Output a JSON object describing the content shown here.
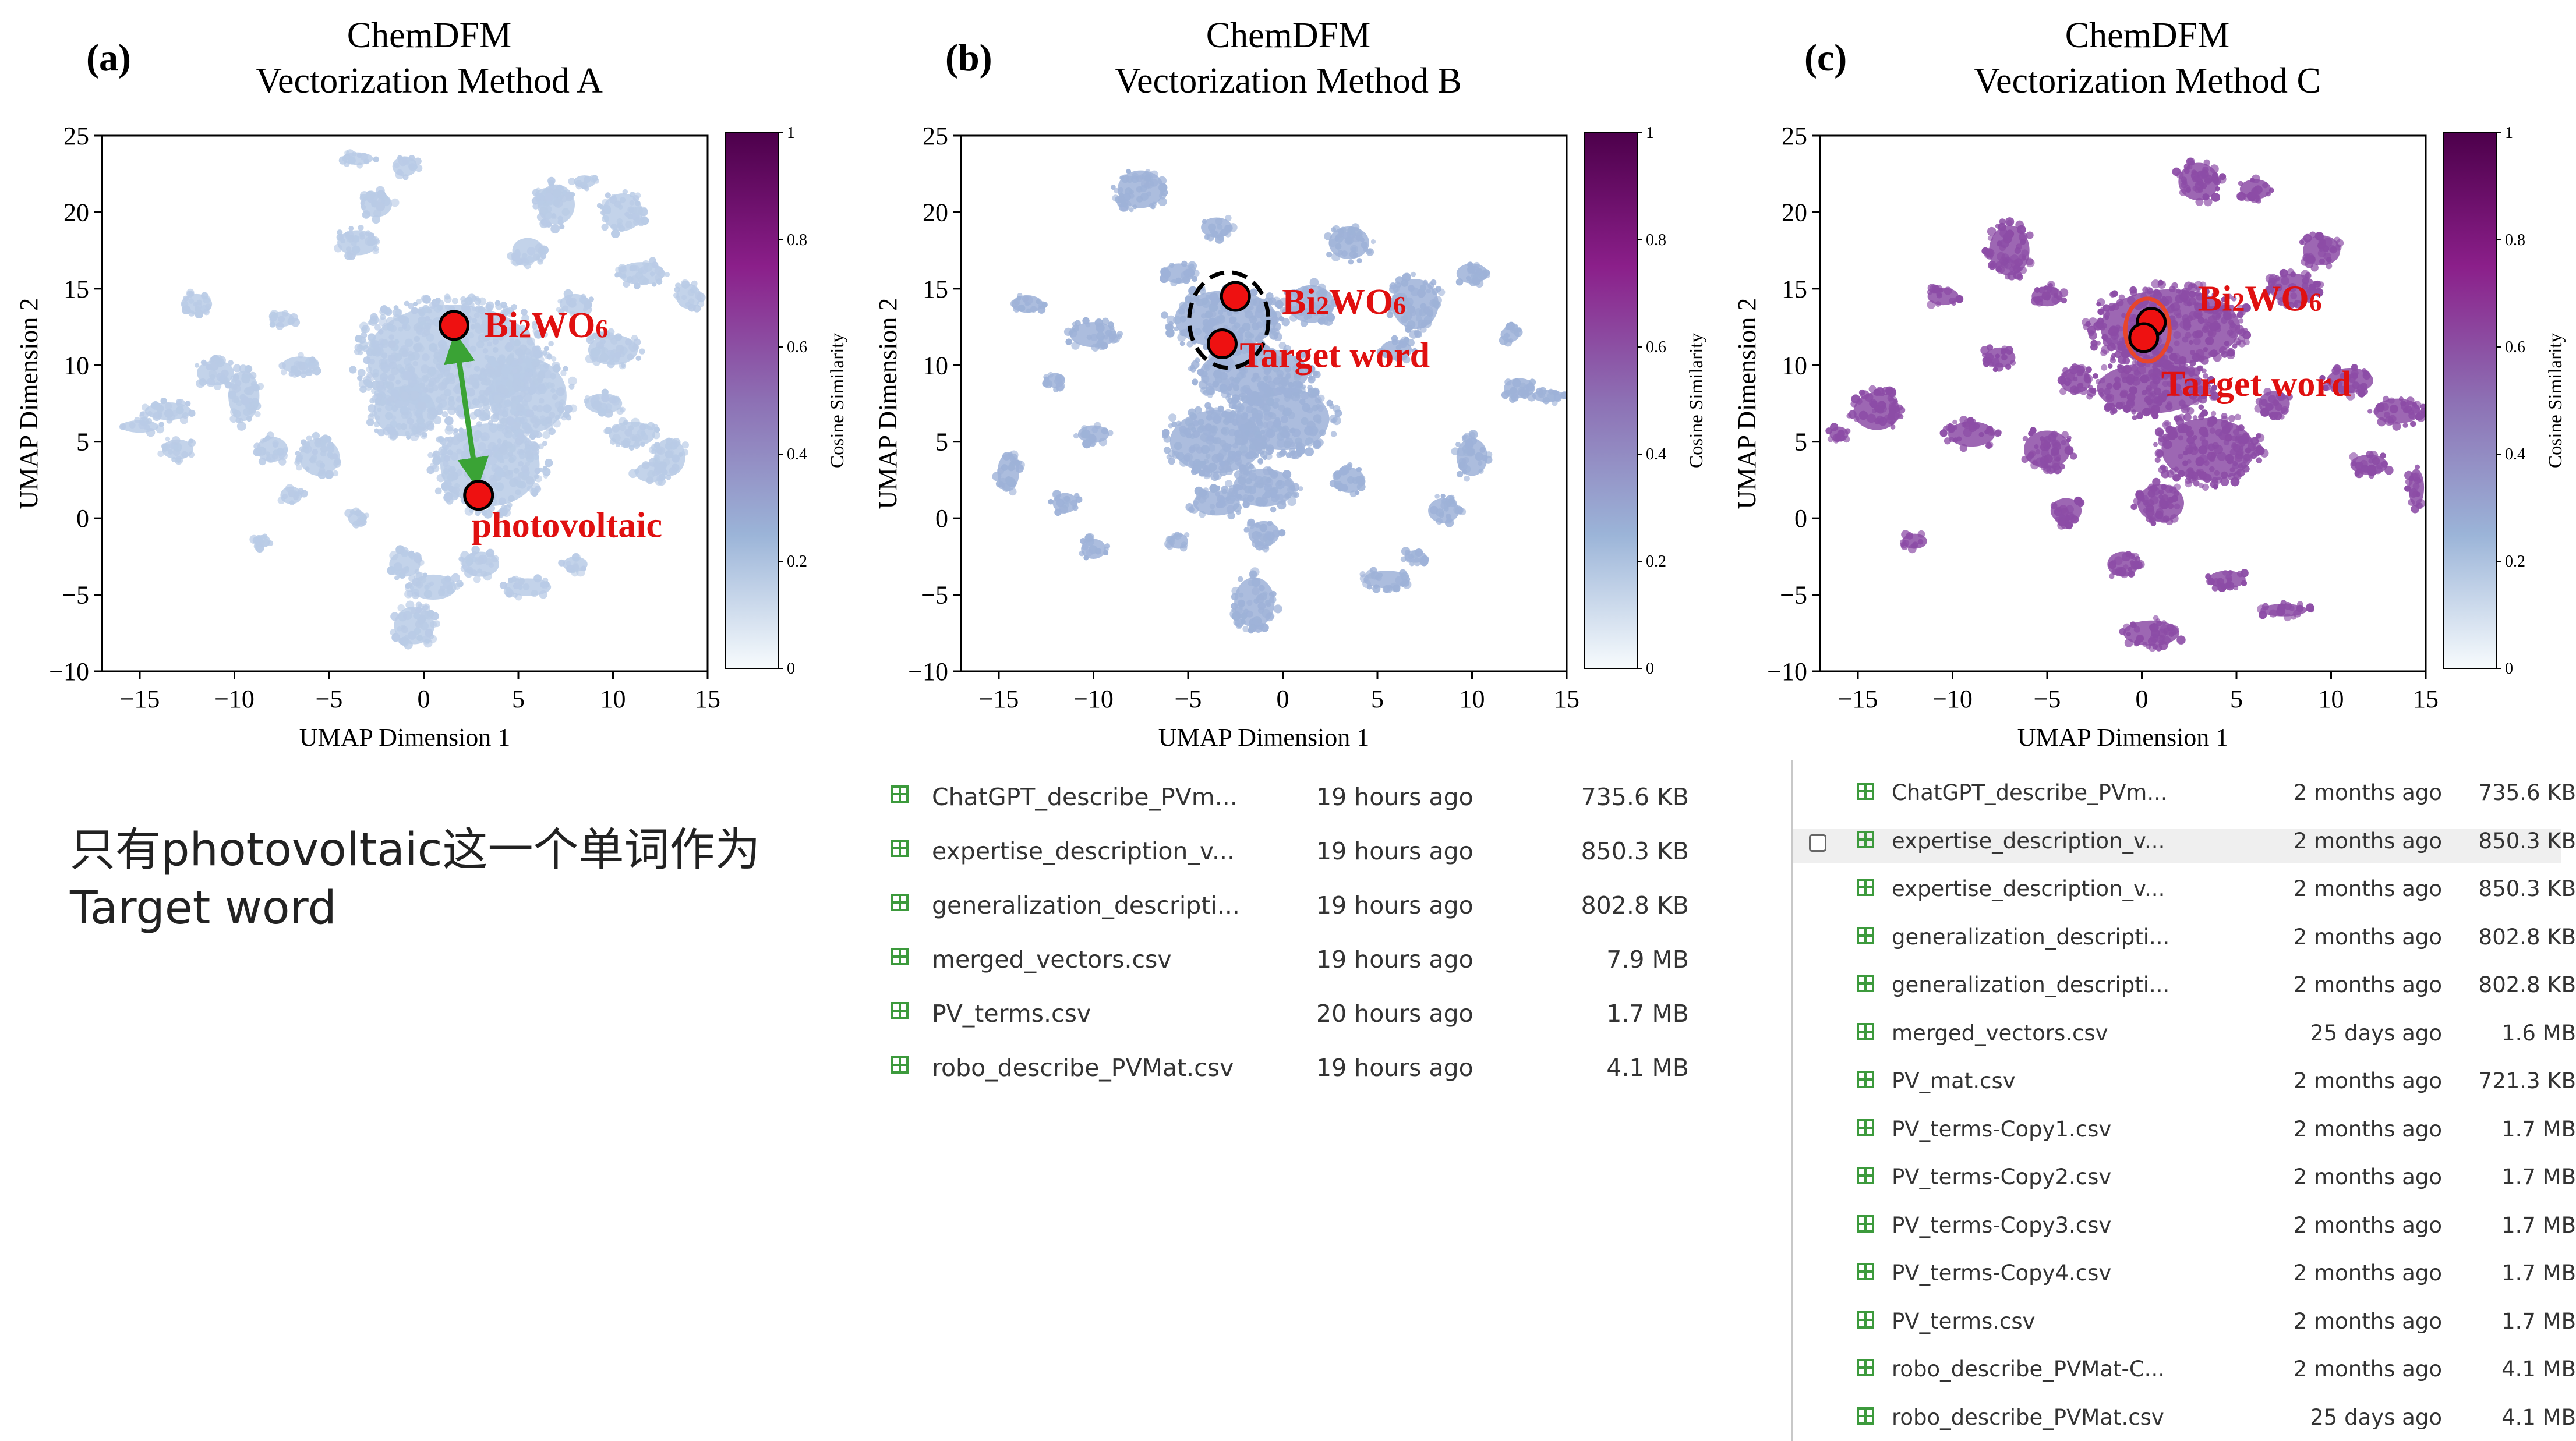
{
  "note": {
    "line1": "只有photovoltaic这一个单词作为",
    "line2": "Target word"
  },
  "chart_data": [
    {
      "type": "scatter",
      "panel": "(a)",
      "title_line1": "ChemDFM",
      "title_line2": "Vectorization Method A",
      "xlabel": "UMAP Dimension 1",
      "ylabel": "UMAP Dimension 2",
      "xlim": [
        -17,
        15
      ],
      "ylim": [
        -10,
        25
      ],
      "xticks": [
        "−15",
        "−10",
        "−5",
        "0",
        "5",
        "10",
        "15"
      ],
      "yticks": [
        "−10",
        "−5",
        "0",
        "5",
        "10",
        "15",
        "20",
        "25"
      ],
      "colorbar": {
        "label": "Cosine Similarity",
        "ticks": [
          "0",
          "0.2",
          "0.4",
          "0.6",
          "0.8",
          "1"
        ],
        "colors": [
          "#f7fbfd",
          "#9bb4d8",
          "#8d70b4",
          "#8b1f8a",
          "#4d004b"
        ]
      },
      "point_color": "#b9cbe6",
      "highlights": [
        {
          "label": "Bi2WO6",
          "x": 1.6,
          "y": 12.6
        },
        {
          "label": "photovoltaic",
          "x": 2.9,
          "y": 1.5
        }
      ],
      "arrow": {
        "color": "#3aa335"
      },
      "clusters": [
        [
          1.5,
          10.5,
          5.5,
          4.2
        ],
        [
          3.5,
          3.5,
          3.2,
          3.3
        ],
        [
          5.5,
          8.0,
          2.5,
          3.0
        ],
        [
          -1.0,
          7.0,
          2.0,
          2.0
        ],
        [
          -6.5,
          10.0,
          1.2,
          0.7
        ],
        [
          -9.5,
          8.0,
          1.0,
          2.0
        ],
        [
          -12.0,
          14.0,
          1.0,
          0.8
        ],
        [
          -11.0,
          9.5,
          1.2,
          1.0
        ],
        [
          -13.5,
          7.0,
          1.5,
          0.7
        ],
        [
          -15.0,
          6.0,
          1.2,
          0.5
        ],
        [
          -13.0,
          4.5,
          1.0,
          0.8
        ],
        [
          -8.0,
          4.5,
          1.0,
          1.0
        ],
        [
          -5.5,
          4.0,
          1.3,
          1.5
        ],
        [
          -7.0,
          1.5,
          0.7,
          0.7
        ],
        [
          -3.5,
          18.0,
          1.3,
          1.0
        ],
        [
          -2.5,
          20.5,
          1.0,
          1.0
        ],
        [
          -1.0,
          23.0,
          0.8,
          0.8
        ],
        [
          -3.5,
          23.5,
          1.0,
          0.5
        ],
        [
          5.5,
          17.5,
          1.0,
          1.0
        ],
        [
          6.5,
          21.0,
          0.8,
          0.7
        ],
        [
          8.5,
          22.0,
          0.7,
          0.5
        ],
        [
          7.0,
          20.5,
          1.2,
          1.6
        ],
        [
          10.5,
          20.0,
          1.3,
          1.5
        ],
        [
          11.5,
          16.0,
          1.5,
          0.9
        ],
        [
          14.0,
          14.5,
          0.8,
          1.0
        ],
        [
          10.0,
          11.0,
          1.6,
          1.2
        ],
        [
          9.5,
          7.5,
          1.2,
          0.8
        ],
        [
          11.0,
          5.5,
          1.5,
          1.0
        ],
        [
          12.0,
          3.0,
          1.0,
          0.8
        ],
        [
          13.0,
          4.0,
          1.0,
          1.5
        ],
        [
          8.0,
          14.0,
          1.0,
          0.8
        ],
        [
          -7.5,
          13.0,
          0.8,
          0.6
        ],
        [
          -8.5,
          -1.5,
          0.5,
          0.5
        ],
        [
          -3.5,
          0.0,
          0.6,
          0.6
        ],
        [
          -1.0,
          -3.0,
          1.0,
          1.0
        ],
        [
          0.5,
          -4.5,
          1.5,
          1.0
        ],
        [
          -0.5,
          -7.0,
          1.3,
          1.5
        ],
        [
          5.5,
          -4.5,
          1.5,
          0.7
        ],
        [
          8.0,
          -3.0,
          0.8,
          0.6
        ],
        [
          3.0,
          -3.0,
          1.2,
          1.0
        ]
      ]
    },
    {
      "type": "scatter",
      "panel": "(b)",
      "title_line1": "ChemDFM",
      "title_line2": "Vectorization Method B",
      "xlabel": "UMAP Dimension 1",
      "ylabel": "UMAP Dimension 2",
      "xlim": [
        -17,
        15
      ],
      "ylim": [
        -10,
        25
      ],
      "xticks": [
        "−15",
        "−10",
        "−5",
        "0",
        "5",
        "10",
        "15"
      ],
      "yticks": [
        "−10",
        "−5",
        "0",
        "5",
        "10",
        "15",
        "20",
        "25"
      ],
      "colorbar": {
        "label": "Cosine Similarity",
        "ticks": [
          "0",
          "0.2",
          "0.4",
          "0.6",
          "0.8",
          "1"
        ],
        "colors": [
          "#f7fbfd",
          "#9bb4d8",
          "#8d70b4",
          "#8b1f8a",
          "#4d004b"
        ]
      },
      "point_color": "#9eb2d8",
      "highlights": [
        {
          "label": "Bi2WO6",
          "x": -2.5,
          "y": 14.5
        },
        {
          "label": "Target word",
          "x": -3.2,
          "y": 11.4
        }
      ],
      "clusters": [
        [
          -3.0,
          13.0,
          3.3,
          2.3
        ],
        [
          -1.5,
          9.5,
          3.5,
          2.0
        ],
        [
          -3.5,
          5.0,
          3.0,
          2.5
        ],
        [
          0.0,
          6.5,
          3.0,
          2.5
        ],
        [
          -1.0,
          2.0,
          2.0,
          1.5
        ],
        [
          -3.5,
          1.0,
          1.5,
          1.0
        ],
        [
          -1.0,
          -1.0,
          1.0,
          1.0
        ],
        [
          -1.5,
          -5.5,
          1.3,
          2.0
        ],
        [
          -7.5,
          21.5,
          1.5,
          1.5
        ],
        [
          -10.0,
          12.0,
          1.5,
          1.0
        ],
        [
          -13.5,
          14.0,
          1.0,
          0.7
        ],
        [
          -14.5,
          3.0,
          0.7,
          1.5
        ],
        [
          -10.0,
          5.5,
          1.0,
          0.7
        ],
        [
          -11.5,
          1.0,
          0.8,
          0.8
        ],
        [
          -10.0,
          -2.0,
          0.8,
          0.8
        ],
        [
          -5.5,
          16.0,
          1.0,
          0.8
        ],
        [
          3.5,
          18.0,
          1.3,
          1.3
        ],
        [
          7.0,
          14.0,
          1.5,
          2.0
        ],
        [
          10.0,
          16.0,
          1.0,
          0.8
        ],
        [
          12.5,
          8.5,
          1.0,
          0.8
        ],
        [
          14.0,
          8.0,
          1.0,
          0.5
        ],
        [
          12.0,
          12.0,
          0.6,
          0.6
        ],
        [
          10.0,
          4.0,
          1.0,
          1.5
        ],
        [
          8.5,
          0.5,
          1.0,
          1.0
        ],
        [
          3.5,
          2.5,
          1.0,
          1.0
        ],
        [
          5.5,
          -4.0,
          1.5,
          0.7
        ],
        [
          7.0,
          -2.5,
          0.7,
          0.5
        ],
        [
          -5.5,
          -1.5,
          0.6,
          0.6
        ],
        [
          1.5,
          14.0,
          1.5,
          1.5
        ],
        [
          -3.5,
          19.0,
          1.0,
          0.8
        ],
        [
          -12.0,
          9.0,
          0.6,
          0.6
        ],
        [
          6.0,
          11.0,
          1.0,
          0.8
        ]
      ]
    },
    {
      "type": "scatter",
      "panel": "(c)",
      "title_line1": "ChemDFM",
      "title_line2": "Vectorization Method C",
      "xlabel": "UMAP Dimension 1",
      "ylabel": "UMAP Dimension 2",
      "xlim": [
        -17,
        15
      ],
      "ylim": [
        -10,
        25
      ],
      "xticks": [
        "−15",
        "−10",
        "−5",
        "0",
        "5",
        "10",
        "15"
      ],
      "yticks": [
        "−10",
        "−5",
        "0",
        "5",
        "10",
        "15",
        "20",
        "25"
      ],
      "colorbar": {
        "label": "Cosine Similarity",
        "ticks": [
          "0",
          "0.2",
          "0.4",
          "0.6",
          "0.8",
          "1"
        ],
        "colors": [
          "#f7fbfd",
          "#9bb4d8",
          "#8d70b4",
          "#8b1f8a",
          "#4d004b"
        ]
      },
      "point_color": "#8c4ca6",
      "highlights": [
        {
          "label": "Bi2WO6",
          "x": 0.5,
          "y": 12.8
        },
        {
          "label": "Target word",
          "x": 0.1,
          "y": 11.8
        }
      ],
      "clusters": [
        [
          1.5,
          12.5,
          4.5,
          3.0
        ],
        [
          0.5,
          8.5,
          3.5,
          2.0
        ],
        [
          3.5,
          4.5,
          3.0,
          2.5
        ],
        [
          1.0,
          1.0,
          1.5,
          1.5
        ],
        [
          -1.0,
          -3.0,
          1.0,
          1.0
        ],
        [
          0.5,
          -7.5,
          1.8,
          1.0
        ],
        [
          -7.0,
          17.5,
          1.3,
          2.0
        ],
        [
          -10.5,
          14.5,
          1.0,
          0.7
        ],
        [
          -14.0,
          7.0,
          1.5,
          1.5
        ],
        [
          -9.0,
          5.5,
          1.5,
          1.0
        ],
        [
          -5.0,
          4.5,
          1.5,
          1.5
        ],
        [
          -4.0,
          0.5,
          1.0,
          1.0
        ],
        [
          -12.0,
          -1.5,
          0.8,
          0.6
        ],
        [
          3.0,
          22.0,
          1.3,
          1.5
        ],
        [
          6.0,
          21.5,
          1.0,
          0.8
        ],
        [
          9.5,
          17.5,
          1.2,
          1.2
        ],
        [
          8.0,
          15.0,
          1.5,
          1.2
        ],
        [
          11.0,
          9.0,
          1.5,
          1.0
        ],
        [
          13.5,
          7.0,
          1.5,
          1.0
        ],
        [
          12.0,
          3.5,
          1.2,
          0.8
        ],
        [
          14.5,
          2.0,
          0.5,
          1.5
        ],
        [
          7.5,
          -6.0,
          1.5,
          0.5
        ],
        [
          4.5,
          -4.0,
          1.2,
          0.7
        ],
        [
          7.0,
          7.5,
          1.0,
          1.0
        ],
        [
          -5.0,
          14.5,
          1.0,
          0.8
        ],
        [
          -7.5,
          10.5,
          1.0,
          0.8
        ],
        [
          -3.5,
          9.0,
          1.0,
          1.0
        ],
        [
          -16.0,
          5.5,
          0.6,
          0.6
        ]
      ]
    }
  ],
  "file_list_b": [
    {
      "name": "ChatGPT_describe_PVm...",
      "date": "19 hours ago",
      "size": "735.6 KB"
    },
    {
      "name": "expertise_description_v...",
      "date": "19 hours ago",
      "size": "850.3 KB"
    },
    {
      "name": "generalization_descripti...",
      "date": "19 hours ago",
      "size": "802.8 KB"
    },
    {
      "name": "merged_vectors.csv",
      "date": "19 hours ago",
      "size": "7.9 MB"
    },
    {
      "name": "PV_terms.csv",
      "date": "20 hours ago",
      "size": "1.7 MB"
    },
    {
      "name": "robo_describe_PVMat.csv",
      "date": "19 hours ago",
      "size": "4.1 MB"
    }
  ],
  "file_list_c": [
    {
      "name": "ChatGPT_describe_PVm...",
      "date": "2 months ago",
      "size": "735.6 KB"
    },
    {
      "name": "expertise_description_v...",
      "date": "2 months ago",
      "size": "850.3 KB"
    },
    {
      "name": "expertise_description_v...",
      "date": "2 months ago",
      "size": "850.3 KB"
    },
    {
      "name": "generalization_descripti...",
      "date": "2 months ago",
      "size": "802.8 KB"
    },
    {
      "name": "generalization_descripti...",
      "date": "2 months ago",
      "size": "802.8 KB"
    },
    {
      "name": "merged_vectors.csv",
      "date": "25 days ago",
      "size": "1.6 MB"
    },
    {
      "name": "PV_mat.csv",
      "date": "2 months ago",
      "size": "721.3 KB"
    },
    {
      "name": "PV_terms-Copy1.csv",
      "date": "2 months ago",
      "size": "1.7 MB"
    },
    {
      "name": "PV_terms-Copy2.csv",
      "date": "2 months ago",
      "size": "1.7 MB"
    },
    {
      "name": "PV_terms-Copy3.csv",
      "date": "2 months ago",
      "size": "1.7 MB"
    },
    {
      "name": "PV_terms-Copy4.csv",
      "date": "2 months ago",
      "size": "1.7 MB"
    },
    {
      "name": "PV_terms.csv",
      "date": "2 months ago",
      "size": "1.7 MB"
    },
    {
      "name": "robo_describe_PVMat-C...",
      "date": "2 months ago",
      "size": "4.1 MB"
    },
    {
      "name": "robo_describe_PVMat.csv",
      "date": "25 days ago",
      "size": "4.1 MB"
    }
  ]
}
